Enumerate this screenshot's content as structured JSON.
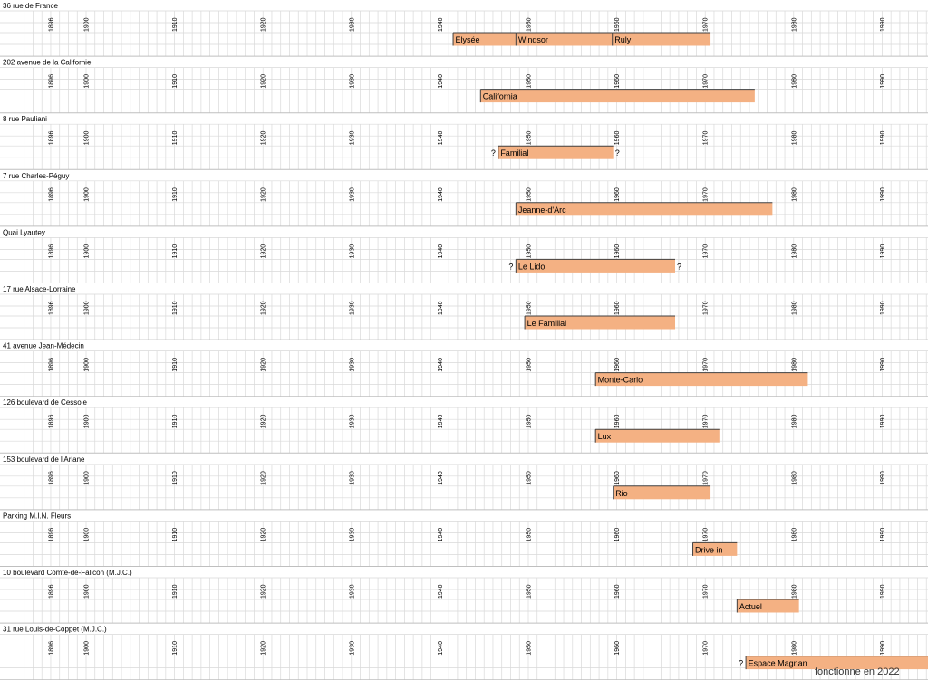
{
  "chart_data": {
    "type": "timeline",
    "x_start": 1892,
    "x_end": 1997,
    "tick_labels": [
      1896,
      1900,
      1910,
      1920,
      1930,
      1940,
      1950,
      1960,
      1970,
      1980,
      1990
    ],
    "grid": true,
    "bar_color": "#f4b183",
    "bar_border_color": "#404040",
    "grid_color": "#d9d9d9",
    "rows": [
      {
        "address": "36 rue de France",
        "bars": [
          {
            "label": "Elysée",
            "start": 1941.5,
            "end": 1948.6
          },
          {
            "label": "Windsor",
            "start": 1948.6,
            "end": 1959.5
          },
          {
            "label": "Ruly",
            "start": 1959.5,
            "end": 1970.6
          }
        ]
      },
      {
        "address": "202 avenue de la Californie",
        "bars": [
          {
            "label": "California",
            "start": 1944.6,
            "end": 1975.6
          }
        ]
      },
      {
        "address": "8 rue Pauliani",
        "bars": [
          {
            "label": "Familial",
            "start": 1946.6,
            "end": 1959.6,
            "q_before": "?",
            "q_after": "?"
          }
        ]
      },
      {
        "address": "7 rue Charles-Péguy",
        "bars": [
          {
            "label": "Jeanne-d'Arc",
            "start": 1948.6,
            "end": 1977.6
          }
        ]
      },
      {
        "address": "Quai Lyautey",
        "bars": [
          {
            "label": "Le Lido",
            "start": 1948.6,
            "end": 1966.6,
            "q_before": "?",
            "q_after": "?"
          }
        ]
      },
      {
        "address": "17 rue Alsace-Lorraine",
        "bars": [
          {
            "label": "Le Familial",
            "start": 1949.6,
            "end": 1966.6
          }
        ]
      },
      {
        "address": "41 avenue Jean-Médecin",
        "bars": [
          {
            "label": "Monte-Carlo",
            "start": 1957.6,
            "end": 1981.6
          }
        ]
      },
      {
        "address": "126 boulevard de Cessole",
        "bars": [
          {
            "label": "Lux",
            "start": 1957.6,
            "end": 1971.6
          }
        ]
      },
      {
        "address": "153 boulevard de l'Ariane",
        "bars": [
          {
            "label": "Rio",
            "start": 1959.6,
            "end": 1970.6
          }
        ]
      },
      {
        "address": "Parking M.I.N. Fleurs",
        "bars": [
          {
            "label": "Drive in",
            "start": 1968.6,
            "end": 1973.6
          }
        ]
      },
      {
        "address": "10 boulevard Comte-de-Falicon (M.J.C.)",
        "bars": [
          {
            "label": "Actuel",
            "start": 1973.6,
            "end": 1980.6
          }
        ]
      },
      {
        "address": "31 rue Louis-de-Coppet (M.J.C.)",
        "bars": [
          {
            "label": "Espace Magnan",
            "start": 1974.6,
            "end": 1997,
            "q_before": "?"
          }
        ]
      }
    ],
    "annotation": "fonctionne en 2022"
  }
}
